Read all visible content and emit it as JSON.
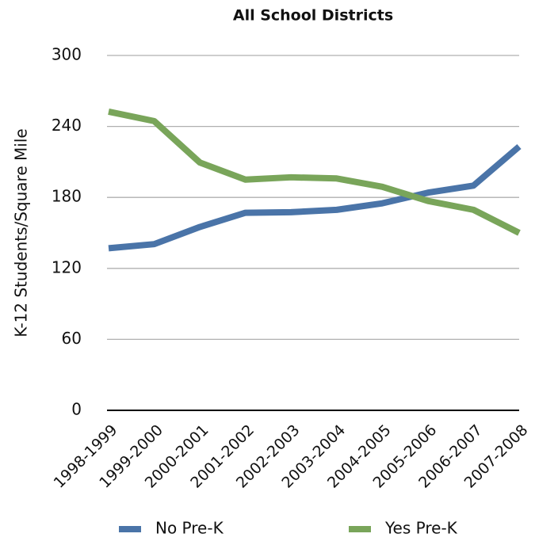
{
  "chart_data": {
    "type": "line",
    "title": "All School Districts",
    "y_label": "K-12 Students/Square Mile",
    "categories": [
      "1998-1999",
      "1999-2000",
      "2000-2001",
      "2001-2002",
      "2002-2003",
      "2003-2004",
      "2004-2005",
      "2005-2006",
      "2006-2007",
      "2007-2008"
    ],
    "series": [
      {
        "name": "No Pre-K",
        "color": "#4a74a8",
        "values": [
          137,
          140.5,
          155,
          167,
          167.5,
          169.5,
          175,
          184,
          190,
          223
        ]
      },
      {
        "name": "Yes Pre-K",
        "color": "#79a55a",
        "values": [
          252.5,
          244.5,
          209.5,
          195,
          197,
          196,
          189,
          177,
          169.5,
          150
        ]
      }
    ],
    "ylim": [
      0,
      300
    ],
    "yticks": [
      0,
      60,
      120,
      180,
      240,
      300
    ],
    "grid": true
  }
}
